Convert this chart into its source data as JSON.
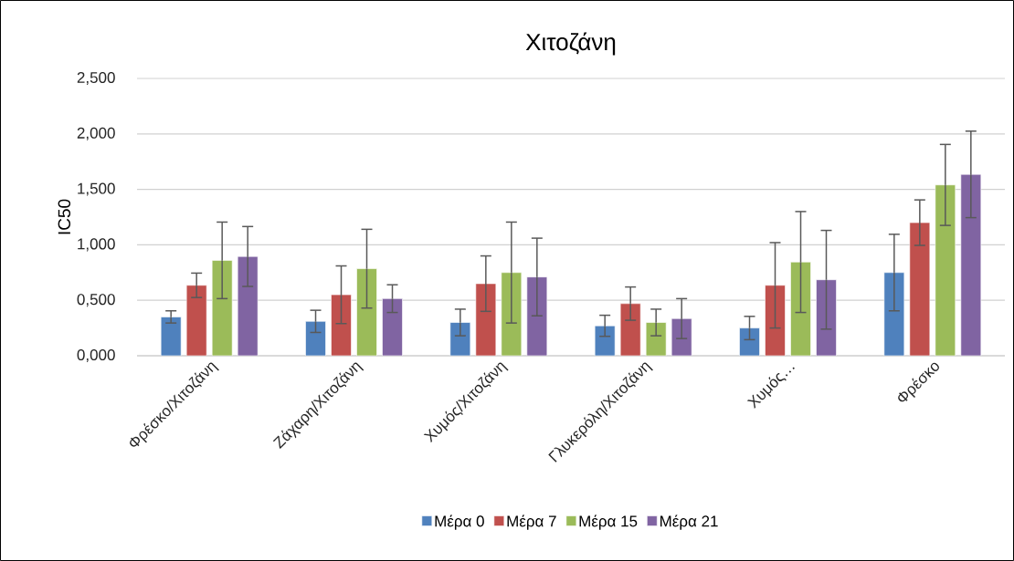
{
  "chart_data": {
    "type": "bar",
    "title": "Χιτοζάνη",
    "ylabel": "IC50",
    "categories": [
      "Φρέσκο/Χιτοζάνη",
      "Ζάχαρη/Χιτοζάνη",
      "Χυμός/Χιτοζάνη",
      "Γλυκερόλη/Χιτοζάνη",
      "Χυμός…",
      "Φρέσκο"
    ],
    "series": [
      {
        "name": "Μέρα 0",
        "color": "#4f81bd",
        "values": [
          0.35,
          0.31,
          0.3,
          0.27,
          0.25,
          0.75
        ],
        "errors": [
          0.055,
          0.1,
          0.12,
          0.095,
          0.105,
          0.345
        ]
      },
      {
        "name": "Μέρα 7",
        "color": "#c0504d",
        "values": [
          0.635,
          0.55,
          0.65,
          0.47,
          0.635,
          1.2
        ],
        "errors": [
          0.11,
          0.26,
          0.25,
          0.15,
          0.385,
          0.205
        ]
      },
      {
        "name": "Μέρα 15",
        "color": "#9bbb59",
        "values": [
          0.86,
          0.785,
          0.75,
          0.3,
          0.845,
          1.54
        ],
        "errors": [
          0.345,
          0.355,
          0.455,
          0.12,
          0.455,
          0.365
        ]
      },
      {
        "name": "Μέρα 21",
        "color": "#8064a2",
        "values": [
          0.895,
          0.515,
          0.71,
          0.335,
          0.685,
          1.635
        ],
        "errors": [
          0.27,
          0.125,
          0.35,
          0.18,
          0.445,
          0.39
        ]
      }
    ],
    "ylim": [
      0,
      2.5
    ],
    "yticks": [
      {
        "value": 0,
        "label": "0,000"
      },
      {
        "value": 0.5,
        "label": "0,500"
      },
      {
        "value": 1,
        "label": "1,000"
      },
      {
        "value": 1.5,
        "label": "1,500"
      },
      {
        "value": 2,
        "label": "2,000"
      },
      {
        "value": 2.5,
        "label": "2,500"
      }
    ],
    "grid": "y",
    "legend": "bottom"
  }
}
